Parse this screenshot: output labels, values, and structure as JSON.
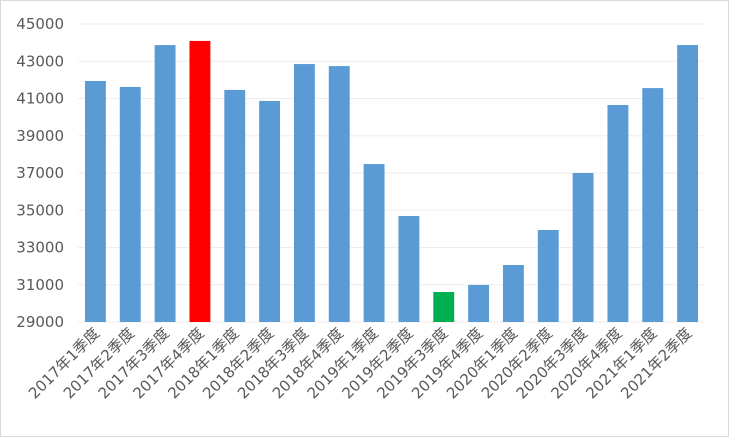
{
  "chart_data": {
    "type": "bar",
    "categories": [
      "2017年1季度",
      "2017年2季度",
      "2017年3季度",
      "2017年4季度",
      "2018年1季度",
      "2018年2季度",
      "2018年3季度",
      "2018年4季度",
      "2019年1季度",
      "2019年2季度",
      "2019年3季度",
      "2019年4季度",
      "2020年1季度",
      "2020年2季度",
      "2020年3季度",
      "2020年4季度",
      "2021年1季度",
      "2021年2季度"
    ],
    "values": [
      41940,
      41620,
      43870,
      44090,
      41460,
      40870,
      42850,
      42740,
      37480,
      34690,
      30610,
      30990,
      32060,
      33940,
      37000,
      40650,
      41560,
      43870
    ],
    "colors": [
      "#5b9bd5",
      "#5b9bd5",
      "#5b9bd5",
      "#ff0000",
      "#5b9bd5",
      "#5b9bd5",
      "#5b9bd5",
      "#5b9bd5",
      "#5b9bd5",
      "#5b9bd5",
      "#00b050",
      "#5b9bd5",
      "#5b9bd5",
      "#5b9bd5",
      "#5b9bd5",
      "#5b9bd5",
      "#5b9bd5",
      "#5b9bd5"
    ],
    "ylim": [
      29000,
      45000
    ],
    "yticks": [
      29000,
      31000,
      33000,
      35000,
      37000,
      39000,
      41000,
      43000,
      45000
    ],
    "grid": true
  }
}
